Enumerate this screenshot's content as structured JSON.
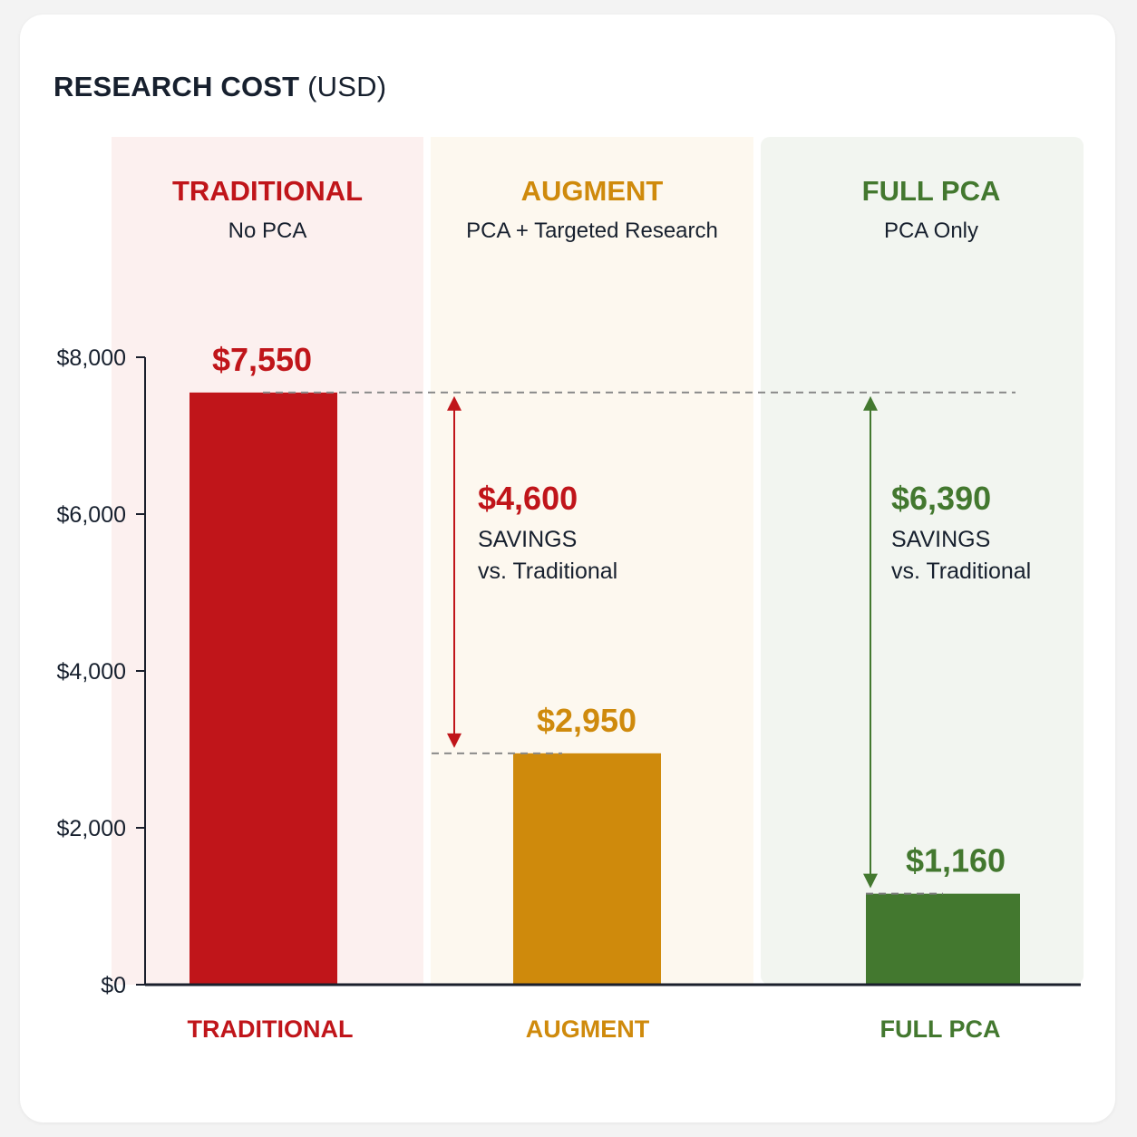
{
  "title": {
    "main": "RESEARCH COST",
    "unit": "(USD)"
  },
  "colors": {
    "traditional": "#c0151a",
    "augment": "#cf8a0c",
    "full_pca": "#43782f",
    "axis": "#1a1f2c",
    "text": "#17202e"
  },
  "chart_data": {
    "type": "bar",
    "title": "RESEARCH COST (USD)",
    "categories": [
      "TRADITIONAL",
      "AUGMENT",
      "FULL PCA"
    ],
    "values": [
      7550,
      2950,
      1160
    ],
    "value_labels": [
      "$7,550",
      "$2,950",
      "$1,160"
    ],
    "ylim": [
      0,
      8000
    ],
    "y_ticks": [
      0,
      2000,
      4000,
      6000,
      8000
    ],
    "y_tick_labels": [
      "$0",
      "$2,000",
      "$4,000",
      "$6,000",
      "$8,000"
    ],
    "grid": false,
    "panels": [
      {
        "heading": "TRADITIONAL",
        "subheading": "No PCA",
        "color_key": "traditional",
        "background": "#fcf0ef"
      },
      {
        "heading": "AUGMENT",
        "subheading": "PCA + Targeted Research",
        "color_key": "augment",
        "background": "#fdf8ef"
      },
      {
        "heading": "FULL PCA",
        "subheading": "PCA Only",
        "color_key": "full_pca",
        "background": "#f2f5f0"
      }
    ],
    "annotations": [
      {
        "from_category": "TRADITIONAL",
        "to_category": "AUGMENT",
        "amount": "$4,600",
        "line1": "SAVINGS",
        "line2": "vs. Traditional",
        "color_key": "traditional"
      },
      {
        "from_category": "TRADITIONAL",
        "to_category": "FULL PCA",
        "amount": "$6,390",
        "line1": "SAVINGS",
        "line2": "vs. Traditional",
        "color_key": "full_pca"
      }
    ]
  }
}
